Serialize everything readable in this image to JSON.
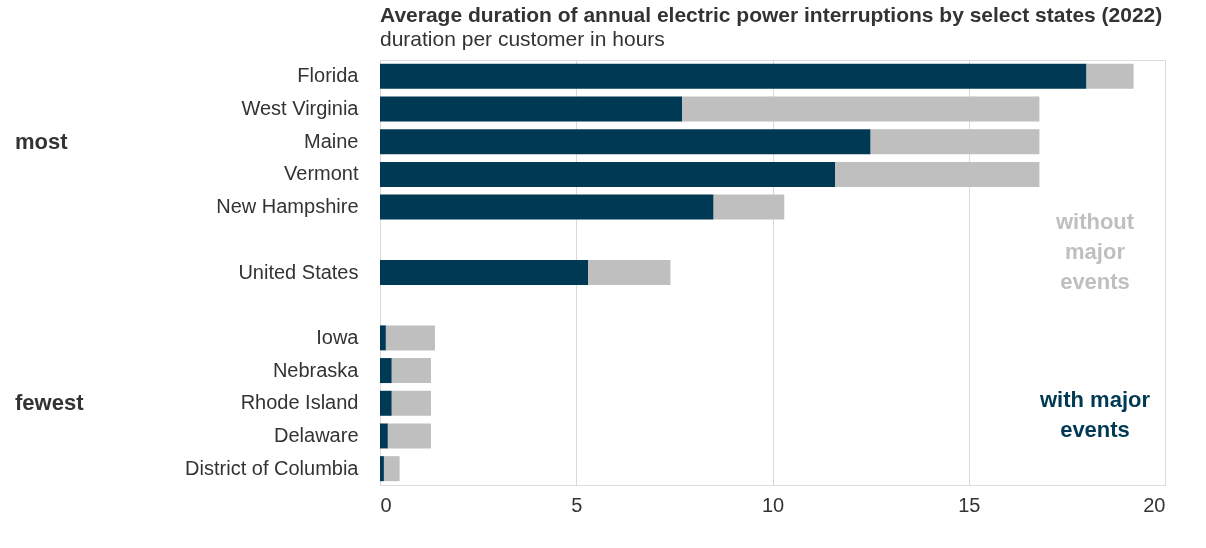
{
  "chart_data": {
    "type": "bar",
    "orientation": "horizontal",
    "stacked": true,
    "title": "Average duration of annual electric power interruptions by select states (2022)",
    "subtitle": "duration per customer in hours",
    "categories": [
      "Florida",
      "West Virginia",
      "Maine",
      "Vermont",
      "New Hampshire",
      null,
      "United States",
      null,
      "Iowa",
      "Nebraska",
      "Rhode Island",
      "Delaware",
      "District of Columbia"
    ],
    "series": [
      {
        "name": "with major events",
        "color": "#003953",
        "values": [
          18.0,
          7.7,
          12.5,
          11.6,
          8.5,
          null,
          5.3,
          null,
          0.15,
          0.3,
          0.3,
          0.2,
          0.1
        ]
      },
      {
        "name": "without major events",
        "color": "#bfbfbf",
        "values": [
          1.2,
          9.1,
          4.3,
          5.2,
          1.8,
          null,
          2.1,
          null,
          1.25,
          1.0,
          1.0,
          1.1,
          0.4
        ]
      }
    ],
    "annotations": [
      "most",
      "fewest"
    ],
    "xlim": [
      0,
      20
    ],
    "xticks": [
      0,
      5,
      10,
      15,
      20
    ],
    "grid": "x",
    "legend": "right"
  }
}
